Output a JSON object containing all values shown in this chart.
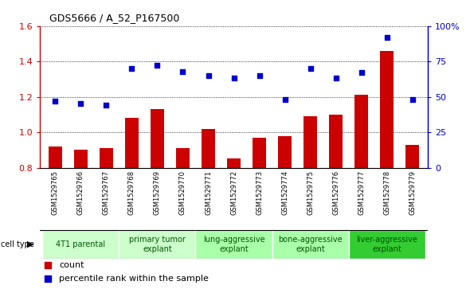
{
  "title": "GDS5666 / A_52_P167500",
  "samples": [
    "GSM1529765",
    "GSM1529766",
    "GSM1529767",
    "GSM1529768",
    "GSM1529769",
    "GSM1529770",
    "GSM1529771",
    "GSM1529772",
    "GSM1529773",
    "GSM1529774",
    "GSM1529775",
    "GSM1529776",
    "GSM1529777",
    "GSM1529778",
    "GSM1529779"
  ],
  "bar_values": [
    0.92,
    0.9,
    0.91,
    1.08,
    1.13,
    0.91,
    1.02,
    0.85,
    0.97,
    0.98,
    1.09,
    1.1,
    1.21,
    1.46,
    0.93
  ],
  "dot_values": [
    47,
    45,
    44,
    70,
    72,
    68,
    65,
    63,
    65,
    48,
    70,
    63,
    67,
    92,
    48
  ],
  "ylim_left": [
    0.8,
    1.6
  ],
  "ylim_right": [
    0,
    100
  ],
  "yticks_left": [
    0.8,
    1.0,
    1.2,
    1.4,
    1.6
  ],
  "yticks_right": [
    0,
    25,
    50,
    75,
    100
  ],
  "bar_color": "#cc0000",
  "dot_color": "#0000cc",
  "cell_types": [
    {
      "label": "4T1 parental",
      "start": 0,
      "end": 2,
      "color": "#ccffcc"
    },
    {
      "label": "primary tumor\nexplant",
      "start": 3,
      "end": 5,
      "color": "#ccffcc"
    },
    {
      "label": "lung-aggressive\nexplant",
      "start": 6,
      "end": 8,
      "color": "#aaffaa"
    },
    {
      "label": "bone-aggressive\nexplant",
      "start": 9,
      "end": 11,
      "color": "#aaffaa"
    },
    {
      "label": "liver-aggressive\nexplant",
      "start": 12,
      "end": 14,
      "color": "#33cc33"
    }
  ],
  "cell_type_colors": [
    "#ccffcc",
    "#ccffcc",
    "#aaffaa",
    "#aaffaa",
    "#33cc33"
  ],
  "cell_type_label": "cell type",
  "legend_count_label": "count",
  "legend_percentile_label": "percentile rank within the sample",
  "sample_bg_color": "#cccccc",
  "fig_bg_color": "#ffffff",
  "title_fontsize": 9,
  "axis_label_fontsize": 8,
  "sample_fontsize": 6,
  "celltype_fontsize": 7,
  "legend_fontsize": 8
}
